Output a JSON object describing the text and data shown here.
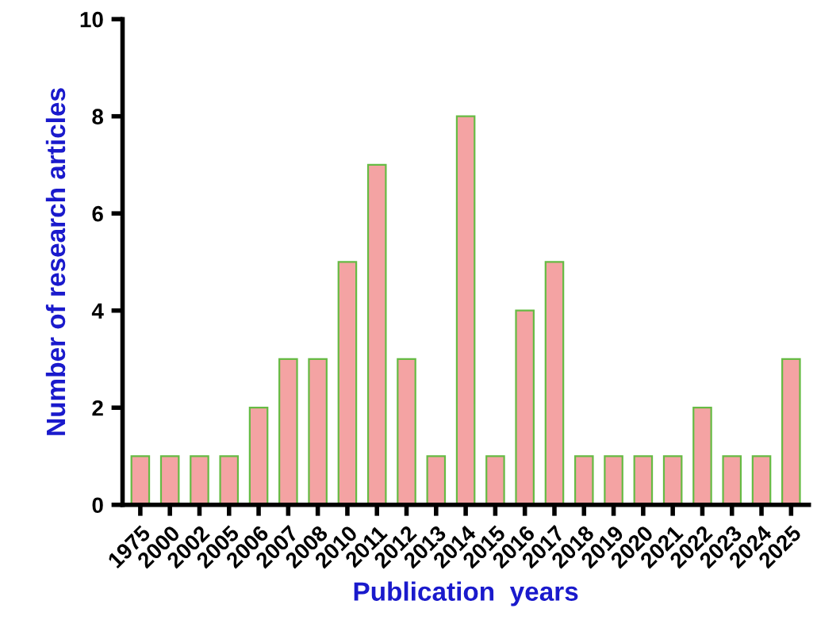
{
  "chart_data": {
    "type": "bar",
    "xlabel": "Publication  years",
    "ylabel": "Number of research articles",
    "categories": [
      "1975",
      "2000",
      "2002",
      "2005",
      "2006",
      "2007",
      "2008",
      "2010",
      "2011",
      "2012",
      "2013",
      "2014",
      "2015",
      "2016",
      "2017",
      "2018",
      "2019",
      "2020",
      "2021",
      "2022",
      "2023",
      "2024",
      "2025"
    ],
    "values": [
      1,
      1,
      1,
      1,
      2,
      3,
      3,
      5,
      7,
      3,
      1,
      8,
      1,
      4,
      5,
      1,
      1,
      1,
      1,
      2,
      1,
      1,
      3
    ],
    "color": "#f4a3a3",
    "ylim": [
      0,
      10
    ],
    "yticks": [
      0,
      2,
      4,
      6,
      8,
      10
    ],
    "grid": false,
    "legend": false
  }
}
